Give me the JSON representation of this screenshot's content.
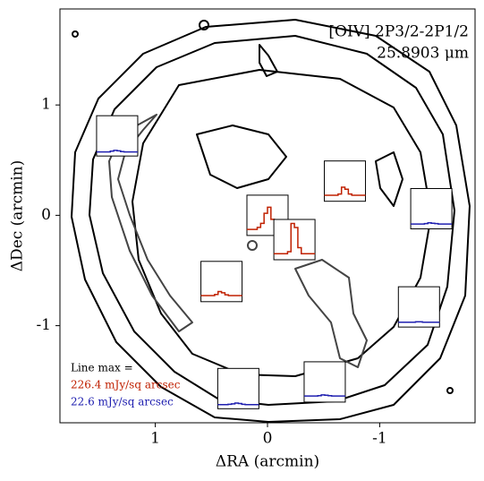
{
  "chart_data": {
    "type": "contour-map",
    "title": "[OIV] 2P3/2-2P1/2",
    "subtitle": "25.8903 μm",
    "xlabel": "ΔRA (arcmin)",
    "ylabel": "ΔDec (arcmin)",
    "xlim": [
      1.85,
      -1.85
    ],
    "xticks": [
      1,
      0,
      -1
    ],
    "ylim": [
      -1.88,
      1.87
    ],
    "yticks": [
      1,
      0,
      -1
    ],
    "annotations": [
      {
        "text": "Line max =",
        "color": "#000000"
      },
      {
        "text": "226.4 mJy/sq arcsec",
        "color": "#c02000"
      },
      {
        "text": "22.6 mJy/sq arcsec",
        "color": "#2020b0"
      }
    ],
    "inset_ylim": [
      0,
      1
    ],
    "insets": [
      {
        "x": 1.34,
        "y": 0.72,
        "color": "#2020b0",
        "values": [
          0.1,
          0.1,
          0.1,
          0.1,
          0.12,
          0.14,
          0.13,
          0.11,
          0.1,
          0.1,
          0.1,
          0.1
        ]
      },
      {
        "x": -0.69,
        "y": 0.31,
        "color": "#c02000",
        "values": [
          0.15,
          0.15,
          0.15,
          0.15,
          0.18,
          0.35,
          0.3,
          0.18,
          0.15,
          0.15,
          0.15,
          0.15
        ]
      },
      {
        "x": -1.46,
        "y": 0.06,
        "color": "#2020b0",
        "values": [
          0.12,
          0.12,
          0.12,
          0.12,
          0.13,
          0.15,
          0.14,
          0.13,
          0.12,
          0.12,
          0.12,
          0.12
        ]
      },
      {
        "x": 0,
        "y": 0,
        "color": "#c02000",
        "values": [
          0.15,
          0.15,
          0.15,
          0.2,
          0.3,
          0.55,
          0.7,
          0.4,
          0.2,
          0.15,
          0.15,
          0.15
        ]
      },
      {
        "x": -0.24,
        "y": -0.22,
        "color": "#c02000",
        "values": [
          0.15,
          0.15,
          0.15,
          0.15,
          0.2,
          0.9,
          0.8,
          0.3,
          0.15,
          0.15,
          0.15,
          0.15
        ]
      },
      {
        "x": 0.41,
        "y": -0.6,
        "color": "#c02000",
        "values": [
          0.15,
          0.15,
          0.15,
          0.15,
          0.18,
          0.25,
          0.22,
          0.17,
          0.15,
          0.15,
          0.15,
          0.15
        ]
      },
      {
        "x": -1.35,
        "y": -0.83,
        "color": "#2020b0",
        "values": [
          0.12,
          0.12,
          0.12,
          0.12,
          0.12,
          0.13,
          0.13,
          0.12,
          0.12,
          0.12,
          0.12,
          0.12
        ]
      },
      {
        "x": 0.26,
        "y": -1.57,
        "color": "#2020b0",
        "values": [
          0.1,
          0.1,
          0.1,
          0.11,
          0.12,
          0.14,
          0.13,
          0.11,
          0.1,
          0.1,
          0.1,
          0.1
        ]
      },
      {
        "x": -0.51,
        "y": -1.51,
        "color": "#2020b0",
        "values": [
          0.15,
          0.15,
          0.15,
          0.15,
          0.16,
          0.18,
          0.17,
          0.16,
          0.15,
          0.15,
          0.15,
          0.15
        ]
      }
    ]
  }
}
